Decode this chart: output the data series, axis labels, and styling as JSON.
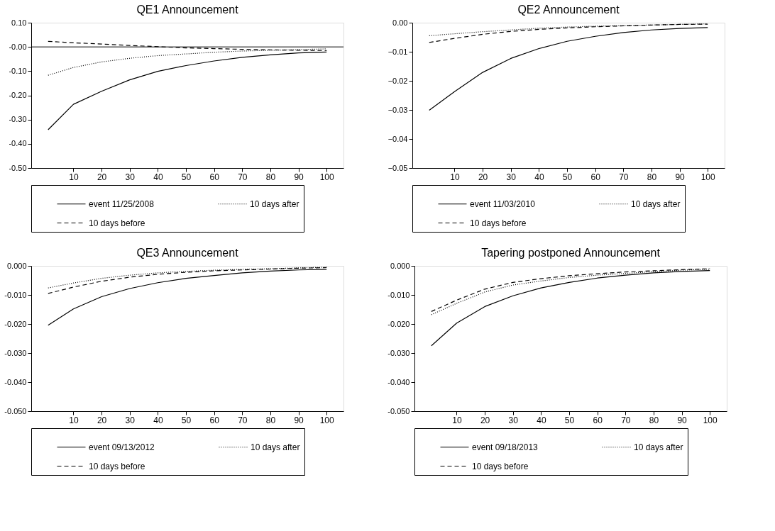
{
  "chart_data": [
    {
      "type": "line",
      "title": "QE1 Announcement",
      "legend": "bottom",
      "grid": false,
      "x": [
        1,
        10,
        20,
        30,
        40,
        50,
        60,
        70,
        80,
        90,
        100
      ],
      "xlim": [
        -5,
        106
      ],
      "xticks": [
        10,
        20,
        30,
        40,
        50,
        60,
        70,
        80,
        90,
        100
      ],
      "ylim": [
        -0.5,
        0.1
      ],
      "yticks": [
        {
          "value": 0.1,
          "label": "0.10"
        },
        {
          "value": 0,
          "label": "-0.00"
        },
        {
          "value": -0.1,
          "label": "-0.10"
        },
        {
          "value": -0.2,
          "label": "-0.20"
        },
        {
          "value": -0.3,
          "label": "-0.30"
        },
        {
          "value": -0.4,
          "label": "-0.40"
        },
        {
          "value": -0.5,
          "label": "-0.50"
        }
      ],
      "ref_lines": [
        {
          "axis": "y",
          "value": 0,
          "color": "#000000"
        }
      ],
      "series": [
        {
          "name": "event 11/25/2008",
          "color": "#000000",
          "line_style": "solid",
          "values": [
            -0.342,
            -0.237,
            -0.183,
            -0.136,
            -0.101,
            -0.077,
            -0.058,
            -0.043,
            -0.033,
            -0.025,
            -0.021
          ]
        },
        {
          "name": "10 days after",
          "color": "#000000",
          "line_style": "dotted",
          "values": [
            -0.117,
            -0.085,
            -0.062,
            -0.047,
            -0.036,
            -0.029,
            -0.022,
            -0.017,
            -0.014,
            -0.011,
            -0.008
          ]
        },
        {
          "name": "10 days before",
          "color": "#000000",
          "line_style": "dashed",
          "values": [
            0.023,
            0.017,
            0.012,
            0.006,
            0.001,
            -0.004,
            -0.007,
            -0.01,
            -0.012,
            -0.014,
            -0.015
          ]
        }
      ]
    },
    {
      "type": "line",
      "title": "QE2 Announcement",
      "legend": "bottom",
      "grid": false,
      "x": [
        1,
        10,
        20,
        30,
        40,
        50,
        60,
        70,
        80,
        90,
        100
      ],
      "xlim": [
        -5,
        106
      ],
      "xticks": [
        10,
        20,
        30,
        40,
        50,
        60,
        70,
        80,
        90,
        100
      ],
      "ylim": [
        -0.05,
        0
      ],
      "yticks": [
        {
          "value": 0,
          "label": "0.00"
        },
        -0.01,
        -0.02,
        -0.03,
        -0.04,
        -0.05
      ],
      "series": [
        {
          "name": "event 11/03/2010",
          "color": "#000000",
          "line_style": "solid",
          "values": [
            -0.0301,
            -0.0237,
            -0.0171,
            -0.0123,
            -0.0089,
            -0.0064,
            -0.0047,
            -0.0034,
            -0.0025,
            -0.002,
            -0.0017
          ]
        },
        {
          "name": "10 days after",
          "color": "#000000",
          "line_style": "dotted",
          "values": [
            -0.0045,
            -0.0038,
            -0.0031,
            -0.0025,
            -0.0019,
            -0.0015,
            -0.0012,
            -0.001,
            -0.0008,
            -0.0006,
            -0.0004
          ]
        },
        {
          "name": "10 days before",
          "color": "#000000",
          "line_style": "dashed",
          "values": [
            -0.0068,
            -0.0054,
            -0.004,
            -0.003,
            -0.0023,
            -0.0018,
            -0.0014,
            -0.0011,
            -0.0008,
            -0.0006,
            -0.0005
          ]
        }
      ]
    },
    {
      "type": "line",
      "title": "QE3 Announcement",
      "legend": "bottom",
      "grid": false,
      "x": [
        1,
        10,
        20,
        30,
        40,
        50,
        60,
        70,
        80,
        90,
        100
      ],
      "xlim": [
        -5,
        106
      ],
      "xticks": [
        10,
        20,
        30,
        40,
        50,
        60,
        70,
        80,
        90,
        100
      ],
      "ylim": [
        -0.05,
        0
      ],
      "yticks": [
        {
          "value": 0,
          "label": "0.000"
        },
        {
          "value": -0.01,
          "label": "-0.010"
        },
        {
          "value": -0.02,
          "label": "-0.020"
        },
        {
          "value": -0.03,
          "label": "-0.030"
        },
        {
          "value": -0.04,
          "label": "-0.040"
        },
        {
          "value": -0.05,
          "label": "-0.050"
        }
      ],
      "series": [
        {
          "name": "event 09/13/2012",
          "color": "#000000",
          "line_style": "solid",
          "values": [
            -0.0204,
            -0.0148,
            -0.0106,
            -0.0078,
            -0.0058,
            -0.0043,
            -0.0033,
            -0.0024,
            -0.0018,
            -0.0014,
            -0.0012
          ]
        },
        {
          "name": "10 days after",
          "color": "#000000",
          "line_style": "dotted",
          "values": [
            -0.0076,
            -0.0059,
            -0.0043,
            -0.0032,
            -0.0024,
            -0.0019,
            -0.0015,
            -0.0012,
            -0.001,
            -0.0007,
            -0.0005
          ]
        },
        {
          "name": "10 days before",
          "color": "#000000",
          "line_style": "dashed",
          "values": [
            -0.0095,
            -0.0073,
            -0.0053,
            -0.0039,
            -0.0029,
            -0.0022,
            -0.0017,
            -0.0014,
            -0.0011,
            -0.0008,
            -0.0006
          ]
        }
      ]
    },
    {
      "type": "line",
      "title": "Tapering postponed Announcement",
      "legend": "bottom",
      "grid": false,
      "x": [
        1,
        10,
        20,
        30,
        40,
        50,
        60,
        70,
        80,
        90,
        100
      ],
      "xlim": [
        -5,
        106
      ],
      "xticks": [
        10,
        20,
        30,
        40,
        50,
        60,
        70,
        80,
        90,
        100
      ],
      "ylim": [
        -0.05,
        0
      ],
      "yticks": [
        {
          "value": 0,
          "label": "0.000"
        },
        {
          "value": -0.01,
          "label": "-0.010"
        },
        {
          "value": -0.02,
          "label": "-0.020"
        },
        {
          "value": -0.03,
          "label": "-0.030"
        },
        {
          "value": -0.04,
          "label": "-0.040"
        },
        {
          "value": -0.05,
          "label": "-0.050"
        }
      ],
      "series": [
        {
          "name": "event 09/18/2013",
          "color": "#000000",
          "line_style": "solid",
          "values": [
            -0.0275,
            -0.0197,
            -0.014,
            -0.0103,
            -0.0076,
            -0.0057,
            -0.0042,
            -0.0032,
            -0.0024,
            -0.0019,
            -0.0016
          ]
        },
        {
          "name": "10 days after",
          "color": "#000000",
          "line_style": "dotted",
          "values": [
            -0.0168,
            -0.0129,
            -0.009,
            -0.0066,
            -0.0052,
            -0.004,
            -0.0032,
            -0.0026,
            -0.002,
            -0.0015,
            -0.0011
          ]
        },
        {
          "name": "10 days before",
          "color": "#000000",
          "line_style": "dashed",
          "values": [
            -0.0157,
            -0.0118,
            -0.008,
            -0.0057,
            -0.0044,
            -0.0034,
            -0.0027,
            -0.0021,
            -0.0017,
            -0.0013,
            -0.001
          ]
        }
      ]
    }
  ]
}
